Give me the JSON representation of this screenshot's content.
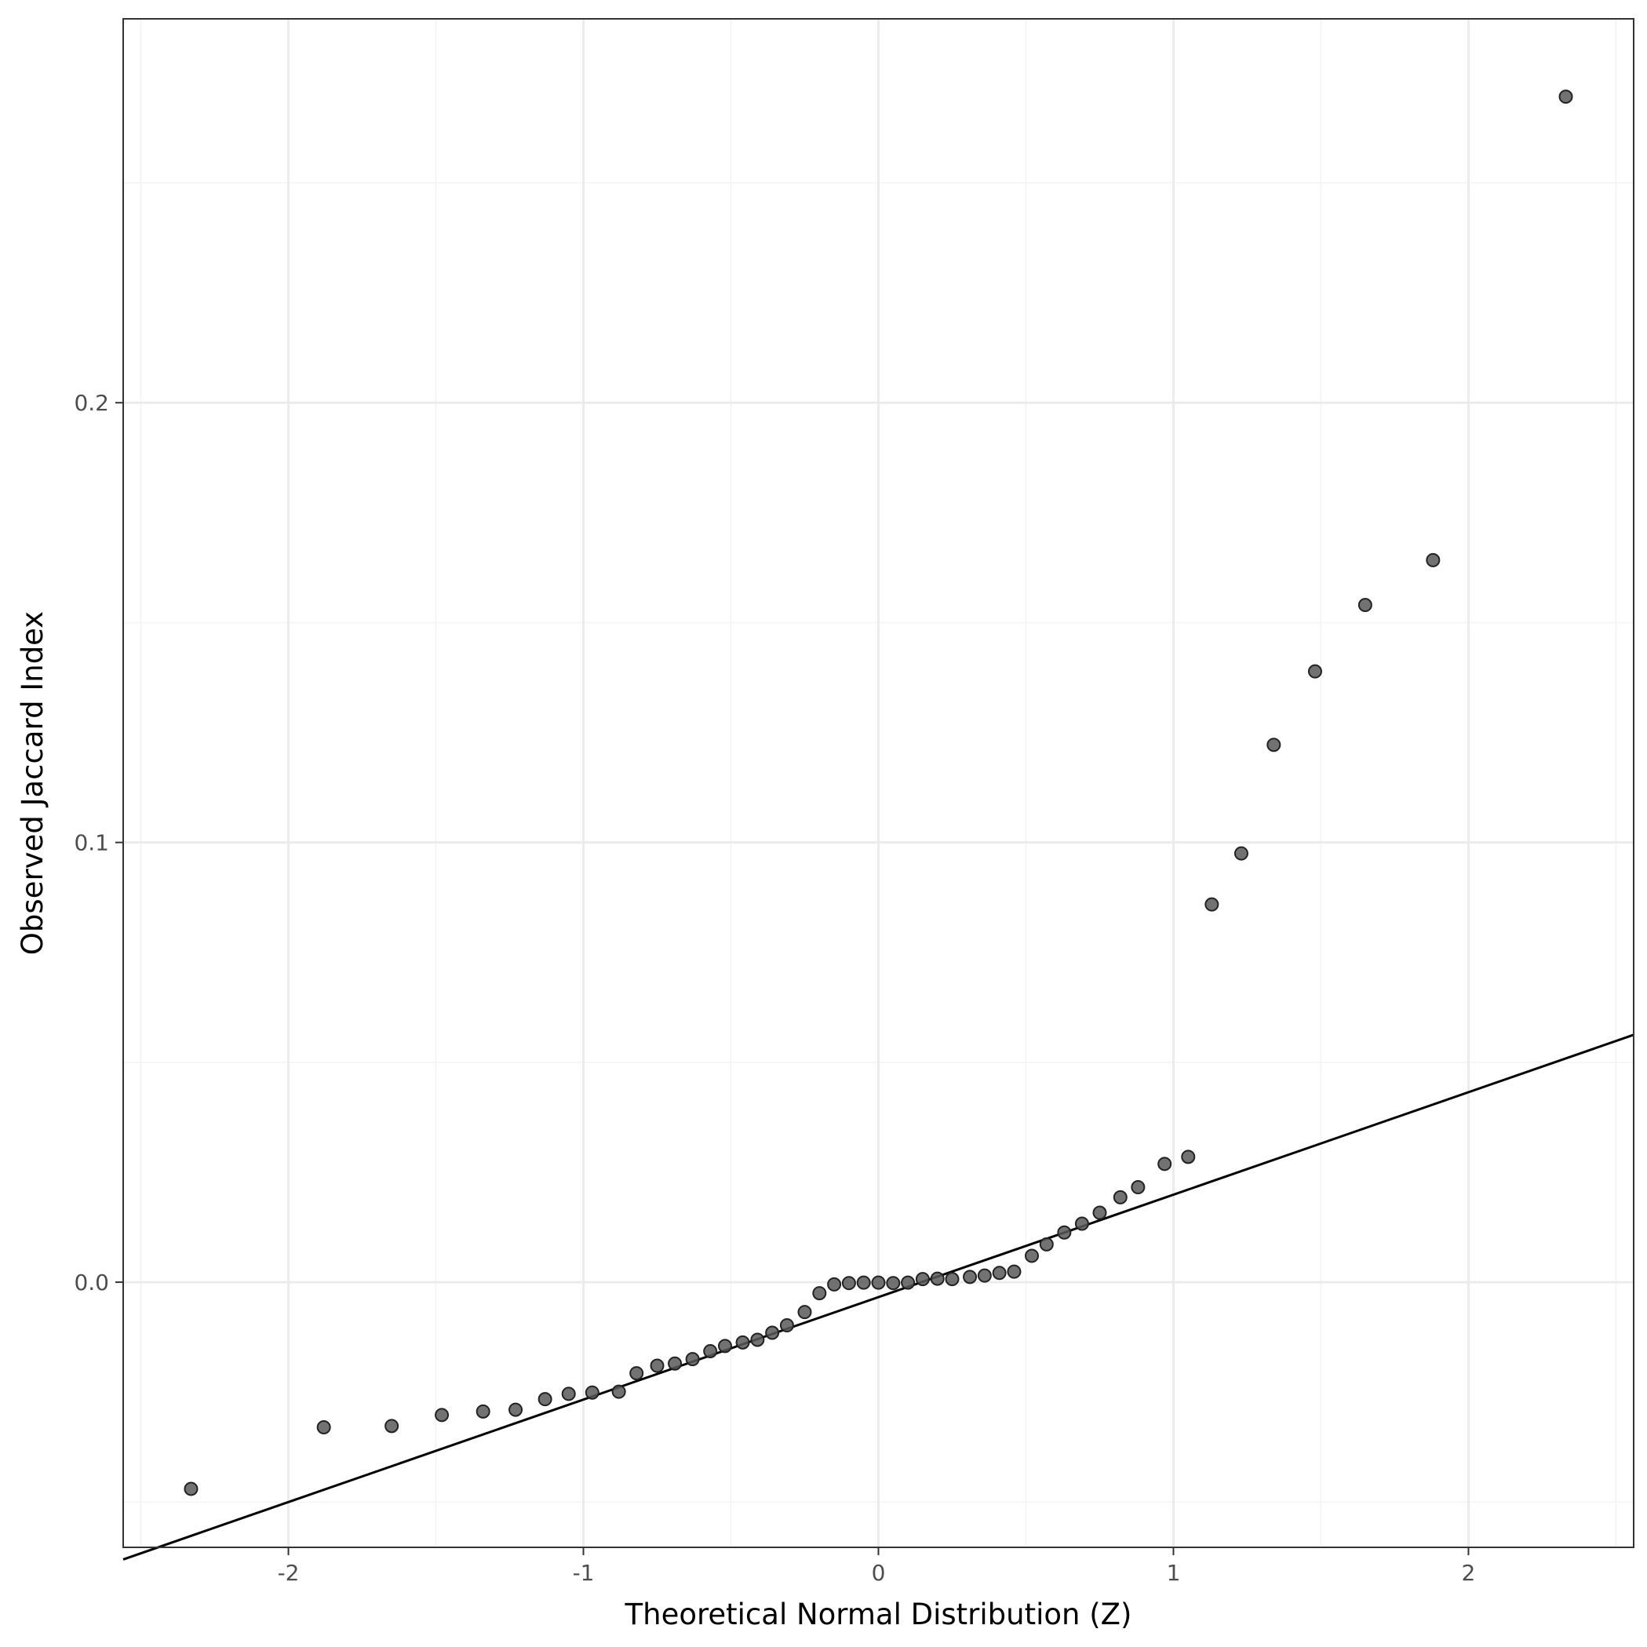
{
  "chart_data": {
    "type": "scatter",
    "title": "",
    "xlabel": "Theoretical Normal Distribution (Z)",
    "ylabel": "Observed Jaccard Index",
    "xlim": [
      -2.56,
      2.56
    ],
    "ylim": [
      -0.0603,
      0.2873
    ],
    "x_ticks": [
      -2,
      -1,
      0,
      1,
      2
    ],
    "x_tick_labels": [
      "-2",
      "-1",
      "0",
      "1",
      "2"
    ],
    "y_ticks": [
      0.0,
      0.1,
      0.2
    ],
    "y_tick_labels": [
      "0.0",
      "0.1",
      "0.2"
    ],
    "grid": true,
    "legend": "none",
    "colors": {
      "points": "#595959",
      "point_stroke": "#222222",
      "reference_line": "#000000",
      "grid_major": "#ebebeb",
      "grid_minor": "#f3f3f3",
      "panel_border": "#333333"
    },
    "reference_line": {
      "intercept": -0.0034,
      "slope": 0.0233
    },
    "series": [
      {
        "points": [
          {
            "x": -2.33,
            "y": -0.047
          },
          {
            "x": -1.88,
            "y": -0.033
          },
          {
            "x": -1.65,
            "y": -0.0327
          },
          {
            "x": -1.48,
            "y": -0.0302
          },
          {
            "x": -1.34,
            "y": -0.0294
          },
          {
            "x": -1.23,
            "y": -0.029
          },
          {
            "x": -1.13,
            "y": -0.0266
          },
          {
            "x": -1.05,
            "y": -0.0254
          },
          {
            "x": -0.97,
            "y": -0.0251
          },
          {
            "x": -0.88,
            "y": -0.0249
          },
          {
            "x": -0.82,
            "y": -0.0207
          },
          {
            "x": -0.75,
            "y": -0.019
          },
          {
            "x": -0.69,
            "y": -0.0185
          },
          {
            "x": -0.63,
            "y": -0.0175
          },
          {
            "x": -0.57,
            "y": -0.0157
          },
          {
            "x": -0.52,
            "y": -0.0145
          },
          {
            "x": -0.46,
            "y": -0.0137
          },
          {
            "x": -0.41,
            "y": -0.0131
          },
          {
            "x": -0.36,
            "y": -0.0115
          },
          {
            "x": -0.31,
            "y": -0.0098
          },
          {
            "x": -0.25,
            "y": -0.0068
          },
          {
            "x": -0.2,
            "y": -0.0025
          },
          {
            "x": -0.15,
            "y": -0.0005
          },
          {
            "x": -0.1,
            "y": -0.0002
          },
          {
            "x": -0.05,
            "y": -0.0001
          },
          {
            "x": 0.0,
            "y": -0.0001
          },
          {
            "x": 0.05,
            "y": -0.0002
          },
          {
            "x": 0.1,
            "y": -0.0001
          },
          {
            "x": 0.15,
            "y": 0.0007
          },
          {
            "x": 0.2,
            "y": 0.0008
          },
          {
            "x": 0.25,
            "y": 0.0007
          },
          {
            "x": 0.31,
            "y": 0.0012
          },
          {
            "x": 0.36,
            "y": 0.0015
          },
          {
            "x": 0.41,
            "y": 0.0021
          },
          {
            "x": 0.46,
            "y": 0.0024
          },
          {
            "x": 0.52,
            "y": 0.006
          },
          {
            "x": 0.57,
            "y": 0.0086
          },
          {
            "x": 0.63,
            "y": 0.0113
          },
          {
            "x": 0.69,
            "y": 0.0133
          },
          {
            "x": 0.75,
            "y": 0.0158
          },
          {
            "x": 0.82,
            "y": 0.0193
          },
          {
            "x": 0.88,
            "y": 0.0216
          },
          {
            "x": 0.97,
            "y": 0.0269
          },
          {
            "x": 1.05,
            "y": 0.0285
          },
          {
            "x": 1.13,
            "y": 0.0859
          },
          {
            "x": 1.23,
            "y": 0.0975
          },
          {
            "x": 1.34,
            "y": 0.1222
          },
          {
            "x": 1.48,
            "y": 0.1389
          },
          {
            "x": 1.65,
            "y": 0.154
          },
          {
            "x": 1.88,
            "y": 0.1642
          },
          {
            "x": 2.33,
            "y": 0.2696
          }
        ]
      }
    ]
  }
}
